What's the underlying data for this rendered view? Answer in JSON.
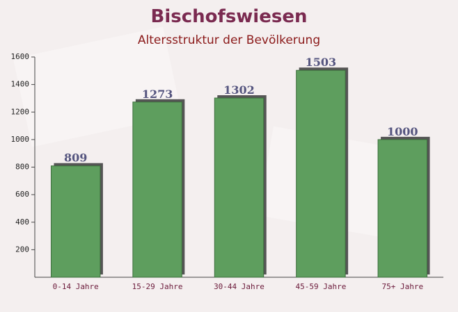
{
  "chart_data": {
    "type": "bar",
    "title": "Bischofswiesen",
    "subtitle": "Altersstruktur der Bevölkerung",
    "categories": [
      "0-14 Jahre",
      "15-29 Jahre",
      "30-44 Jahre",
      "45-59 Jahre",
      "75+ Jahre"
    ],
    "values": [
      809,
      1273,
      1302,
      1503,
      1000
    ],
    "color": "#5e9e5e",
    "ylim": [
      0,
      1600
    ],
    "yticks": [
      200,
      400,
      600,
      800,
      1000,
      1200,
      1400,
      1600
    ]
  }
}
